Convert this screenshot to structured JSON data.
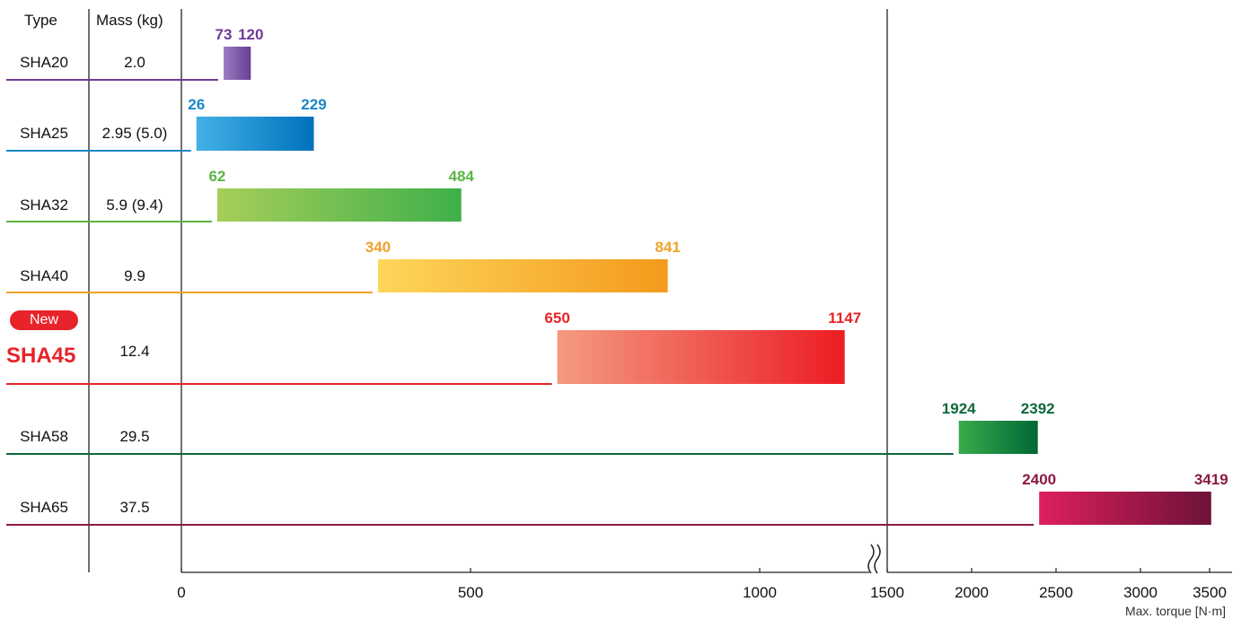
{
  "headers": {
    "type": "Type",
    "mass": "Mass (kg)"
  },
  "new_badge": "New",
  "rows": [
    {
      "type": "SHA20",
      "mass": "2.0",
      "color": "#6e3a96",
      "grad_from": "#9b7ec1",
      "grad_to": "#6a3d96"
    },
    {
      "type": "SHA25",
      "mass": "2.95 (5.0)",
      "color": "#1a86c7",
      "grad_from": "#43b1e6",
      "grad_to": "#0071bc"
    },
    {
      "type": "SHA32",
      "mass": "5.9 (9.4)",
      "color": "#5bb445",
      "grad_from": "#a6ce5a",
      "grad_to": "#3fb04a"
    },
    {
      "type": "SHA40",
      "mass": "9.9",
      "color": "#f0a02a",
      "grad_from": "#fdd65a",
      "grad_to": "#f49a1c"
    },
    {
      "type": "SHA45",
      "mass": "12.4",
      "color": "#e8232a",
      "grad_from": "#f49a82",
      "grad_to": "#ec1c24"
    },
    {
      "type": "SHA58",
      "mass": "29.5",
      "color": "#0d6a3a",
      "grad_from": "#3bab4a",
      "grad_to": "#006837"
    },
    {
      "type": "SHA65",
      "mass": "37.5",
      "color": "#8b1a46",
      "grad_from": "#de1f5e",
      "grad_to": "#6d1238"
    }
  ],
  "chart_data": {
    "type": "bar",
    "orientation": "horizontal-range",
    "categories": [
      "SHA20",
      "SHA25",
      "SHA32",
      "SHA40",
      "SHA45",
      "SHA58",
      "SHA65"
    ],
    "series": [
      {
        "values": [
          [
            73,
            120
          ],
          [
            26,
            229
          ],
          [
            62,
            484
          ],
          [
            340,
            841
          ],
          [
            650,
            1147
          ],
          [
            1924,
            2392
          ],
          [
            2400,
            3419
          ]
        ]
      }
    ],
    "range_labels": [
      [
        "73",
        "120"
      ],
      [
        "26",
        "229"
      ],
      [
        "62",
        "484"
      ],
      [
        "340",
        "841"
      ],
      [
        "650",
        "1147"
      ],
      [
        "1924",
        "2392"
      ],
      [
        "2400",
        "3419"
      ]
    ],
    "x_ticks": [
      "0",
      "500",
      "1000",
      "1500",
      "2000",
      "2500",
      "3000",
      "3500"
    ],
    "xlabel": "Max. torque [N·m]",
    "axis_break": "between 1000 and 1500",
    "xlim_segment1": [
      0,
      1200
    ],
    "xlim_segment2": [
      1500,
      3500
    ],
    "grid": false
  }
}
